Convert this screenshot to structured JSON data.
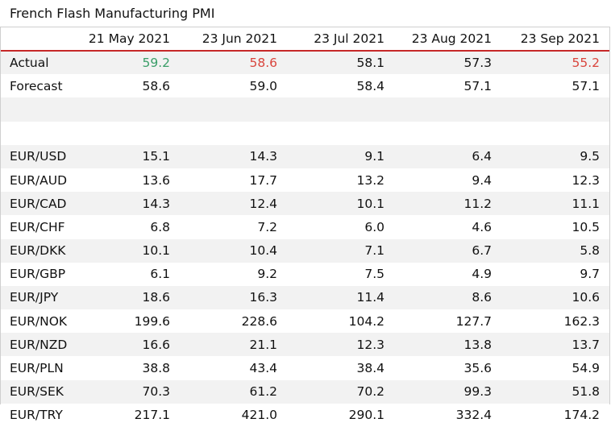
{
  "title": "French Flash Manufacturing PMI",
  "colors": {
    "header_rule": "#c62828",
    "beat": "#3a9e68",
    "miss": "#d9443c",
    "stripe": "#f2f2f2"
  },
  "chart_data": {
    "type": "table",
    "title": "French Flash Manufacturing PMI",
    "columns": [
      "",
      "21 May 2021",
      "23 Jun 2021",
      "23 Jul 2021",
      "23 Aug 2021",
      "23 Sep 2021"
    ],
    "rows": [
      {
        "label": "Actual",
        "values": [
          "59.2",
          "58.6",
          "58.1",
          "57.3",
          "55.2"
        ],
        "status": [
          "up",
          "down",
          "",
          "",
          "down"
        ]
      },
      {
        "label": "Forecast",
        "values": [
          "58.6",
          "59.0",
          "58.4",
          "57.1",
          "57.1"
        ]
      },
      {
        "label": "",
        "values": [
          "",
          "",
          "",
          "",
          ""
        ]
      },
      {
        "label": "",
        "values": [
          "",
          "",
          "",
          "",
          ""
        ]
      },
      {
        "label": "EUR/USD",
        "values": [
          "15.1",
          "14.3",
          "9.1",
          "6.4",
          "9.5"
        ]
      },
      {
        "label": "EUR/AUD",
        "values": [
          "13.6",
          "17.7",
          "13.2",
          "9.4",
          "12.3"
        ]
      },
      {
        "label": "EUR/CAD",
        "values": [
          "14.3",
          "12.4",
          "10.1",
          "11.2",
          "11.1"
        ]
      },
      {
        "label": "EUR/CHF",
        "values": [
          "6.8",
          "7.2",
          "6.0",
          "4.6",
          "10.5"
        ]
      },
      {
        "label": "EUR/DKK",
        "values": [
          "10.1",
          "10.4",
          "7.1",
          "6.7",
          "5.8"
        ]
      },
      {
        "label": "EUR/GBP",
        "values": [
          "6.1",
          "9.2",
          "7.5",
          "4.9",
          "9.7"
        ]
      },
      {
        "label": "EUR/JPY",
        "values": [
          "18.6",
          "16.3",
          "11.4",
          "8.6",
          "10.6"
        ]
      },
      {
        "label": "EUR/NOK",
        "values": [
          "199.6",
          "228.6",
          "104.2",
          "127.7",
          "162.3"
        ]
      },
      {
        "label": "EUR/NZD",
        "values": [
          "16.6",
          "21.1",
          "12.3",
          "13.8",
          "13.7"
        ]
      },
      {
        "label": "EUR/PLN",
        "values": [
          "38.8",
          "43.4",
          "38.4",
          "35.6",
          "54.9"
        ]
      },
      {
        "label": "EUR/SEK",
        "values": [
          "70.3",
          "61.2",
          "70.2",
          "99.3",
          "51.8"
        ]
      },
      {
        "label": "EUR/TRY",
        "values": [
          "217.1",
          "421.0",
          "290.1",
          "332.4",
          "174.2"
        ]
      }
    ]
  }
}
